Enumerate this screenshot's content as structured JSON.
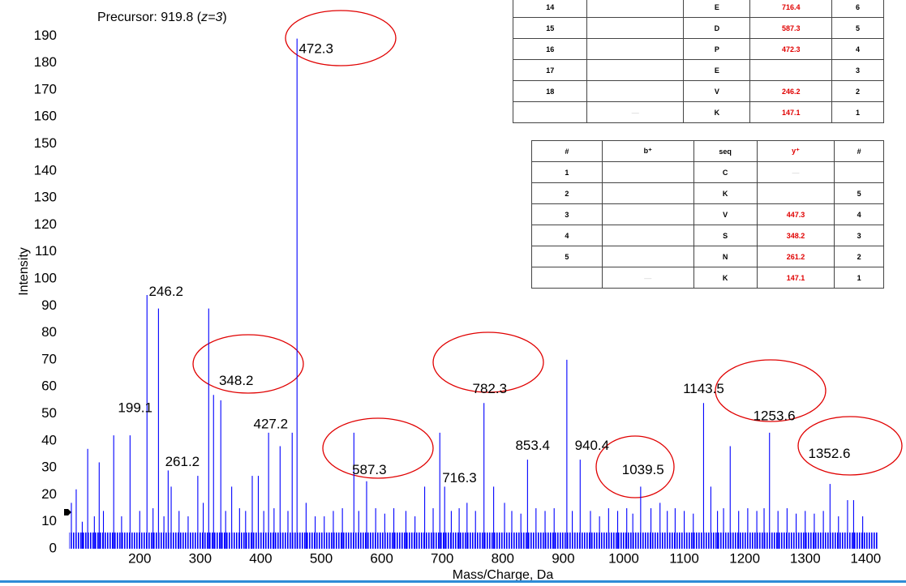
{
  "chart_data": {
    "type": "bar",
    "precursor": {
      "prefix": "Precursor: 919.8 (",
      "charge": "z=3",
      "suffix": ")"
    },
    "xlabel": "Mass/Charge, Da",
    "ylabel": "Intensity",
    "color": "#0000ff",
    "x": [
      87,
      95,
      105,
      114,
      125,
      133,
      140,
      157,
      170,
      184,
      200,
      212,
      222,
      231,
      240,
      247,
      252,
      265,
      280,
      296,
      305,
      314,
      322,
      334,
      342,
      352,
      365,
      375,
      386,
      396,
      405,
      413,
      422,
      432,
      445,
      452,
      460,
      475,
      490,
      505,
      520,
      535,
      554,
      562,
      575,
      590,
      605,
      620,
      640,
      655,
      671,
      685,
      696,
      704,
      715,
      728,
      741,
      755,
      769,
      785,
      803,
      815,
      830,
      841,
      855,
      870,
      885,
      906,
      915,
      928,
      945,
      960,
      975,
      990,
      1005,
      1015,
      1028,
      1045,
      1060,
      1072,
      1085,
      1100,
      1115,
      1132,
      1144,
      1155,
      1165,
      1176,
      1190,
      1205,
      1220,
      1232,
      1241,
      1255,
      1270,
      1285,
      1300,
      1315,
      1330,
      1341,
      1355,
      1370,
      1380,
      1395
    ],
    "values": [
      17,
      22,
      10,
      37,
      12,
      32,
      14,
      42,
      12,
      42,
      14,
      94,
      15,
      89,
      12,
      29,
      23,
      14,
      12,
      27,
      17,
      89,
      57,
      55,
      14,
      23,
      15,
      14,
      27,
      27,
      14,
      43,
      15,
      38,
      14,
      43,
      189,
      17,
      12,
      12,
      14,
      15,
      43,
      14,
      25,
      15,
      13,
      15,
      14,
      12,
      23,
      15,
      43,
      23,
      14,
      15,
      17,
      14,
      54,
      23,
      17,
      14,
      13,
      33,
      15,
      14,
      15,
      70,
      14,
      33,
      14,
      12,
      15,
      14,
      15,
      13,
      23,
      15,
      17,
      14,
      15,
      14,
      13,
      54,
      23,
      14,
      15,
      38,
      14,
      15,
      14,
      15,
      43,
      14,
      15,
      13,
      14,
      13,
      14,
      24,
      12,
      18,
      18,
      12
    ],
    "noise_level": 6,
    "xlim": [
      83,
      1421
    ],
    "ylim": [
      0,
      191
    ],
    "xticks": [
      200,
      300,
      400,
      500,
      600,
      700,
      800,
      900,
      1000,
      1100,
      1200,
      1300,
      1400
    ],
    "yticks": [
      0,
      10,
      20,
      30,
      40,
      50,
      60,
      70,
      80,
      90,
      100,
      110,
      120,
      130,
      140,
      150,
      160,
      170,
      180,
      190
    ],
    "annotations": [
      {
        "text": "472.3",
        "x": 463,
        "y": 185
      },
      {
        "text": "246.2",
        "x": 215,
        "y": 95
      },
      {
        "text": "199.1",
        "x": 164,
        "y": 52
      },
      {
        "text": "348.2",
        "x": 331,
        "y": 62
      },
      {
        "text": "261.2",
        "x": 242,
        "y": 32
      },
      {
        "text": "427.2",
        "x": 388,
        "y": 46
      },
      {
        "text": "587.3",
        "x": 551,
        "y": 29
      },
      {
        "text": "716.3",
        "x": 700,
        "y": 26
      },
      {
        "text": "782.3",
        "x": 750,
        "y": 59
      },
      {
        "text": "853.4",
        "x": 821,
        "y": 38
      },
      {
        "text": "940.4",
        "x": 919,
        "y": 38
      },
      {
        "text": "1039.5",
        "x": 997,
        "y": 29
      },
      {
        "text": "1143.5",
        "x": 1098,
        "y": 59
      },
      {
        "text": "1253.6",
        "x": 1214,
        "y": 49
      },
      {
        "text": "1352.6",
        "x": 1305,
        "y": 35
      }
    ]
  },
  "tables": [
    {
      "rows": [
        [
          "14",
          "",
          "E",
          "716.4",
          "6"
        ],
        [
          "15",
          "",
          "D",
          "587.3",
          "5"
        ],
        [
          "16",
          "",
          "P",
          "472.3",
          "4"
        ],
        [
          "17",
          "",
          "E",
          "",
          "3"
        ],
        [
          "18",
          "",
          "V",
          "246.2",
          "2"
        ],
        [
          "",
          "—",
          "K",
          "147.1",
          "1"
        ]
      ]
    },
    {
      "header": [
        "#",
        "b⁺",
        "seq",
        "y⁺",
        "#"
      ],
      "rows": [
        [
          "1",
          "",
          "C",
          "—",
          ""
        ],
        [
          "2",
          "",
          "K",
          "",
          "5"
        ],
        [
          "3",
          "",
          "V",
          "447.3",
          "4"
        ],
        [
          "4",
          "",
          "S",
          "348.2",
          "3"
        ],
        [
          "5",
          "",
          "N",
          "261.2",
          "2"
        ],
        [
          "",
          "—",
          "K",
          "147.1",
          "1"
        ]
      ]
    }
  ]
}
